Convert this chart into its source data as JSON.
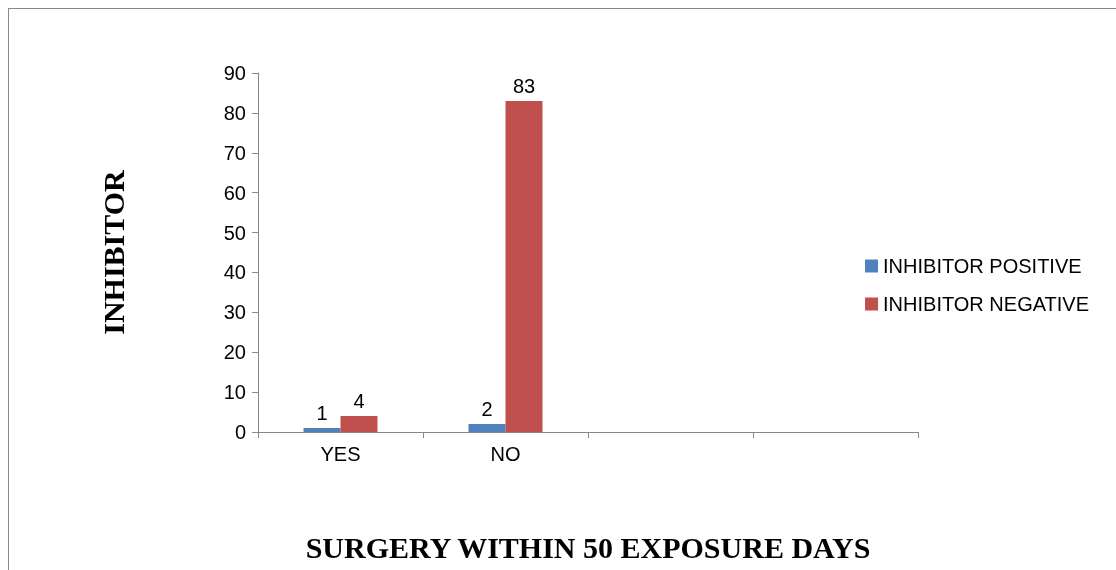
{
  "chart_data": {
    "type": "bar",
    "xlabel": "SURGERY WITHIN 50 EXPOSURE DAYS",
    "ylabel": "INHIBITOR",
    "categories": [
      "YES",
      "NO",
      null,
      null
    ],
    "series": [
      {
        "name": "INHIBITOR POSITIVE",
        "color": "#4f81bd",
        "values": [
          1,
          2,
          null,
          null
        ]
      },
      {
        "name": "INHIBITOR NEGATIVE",
        "color": "#c0504d",
        "values": [
          4,
          83,
          null,
          null
        ]
      }
    ],
    "ylim": [
      0,
      90
    ],
    "yticks": [
      0,
      10,
      20,
      30,
      40,
      50,
      60,
      70,
      80,
      90
    ],
    "grid": false,
    "legend": "right",
    "data_labels": true
  }
}
